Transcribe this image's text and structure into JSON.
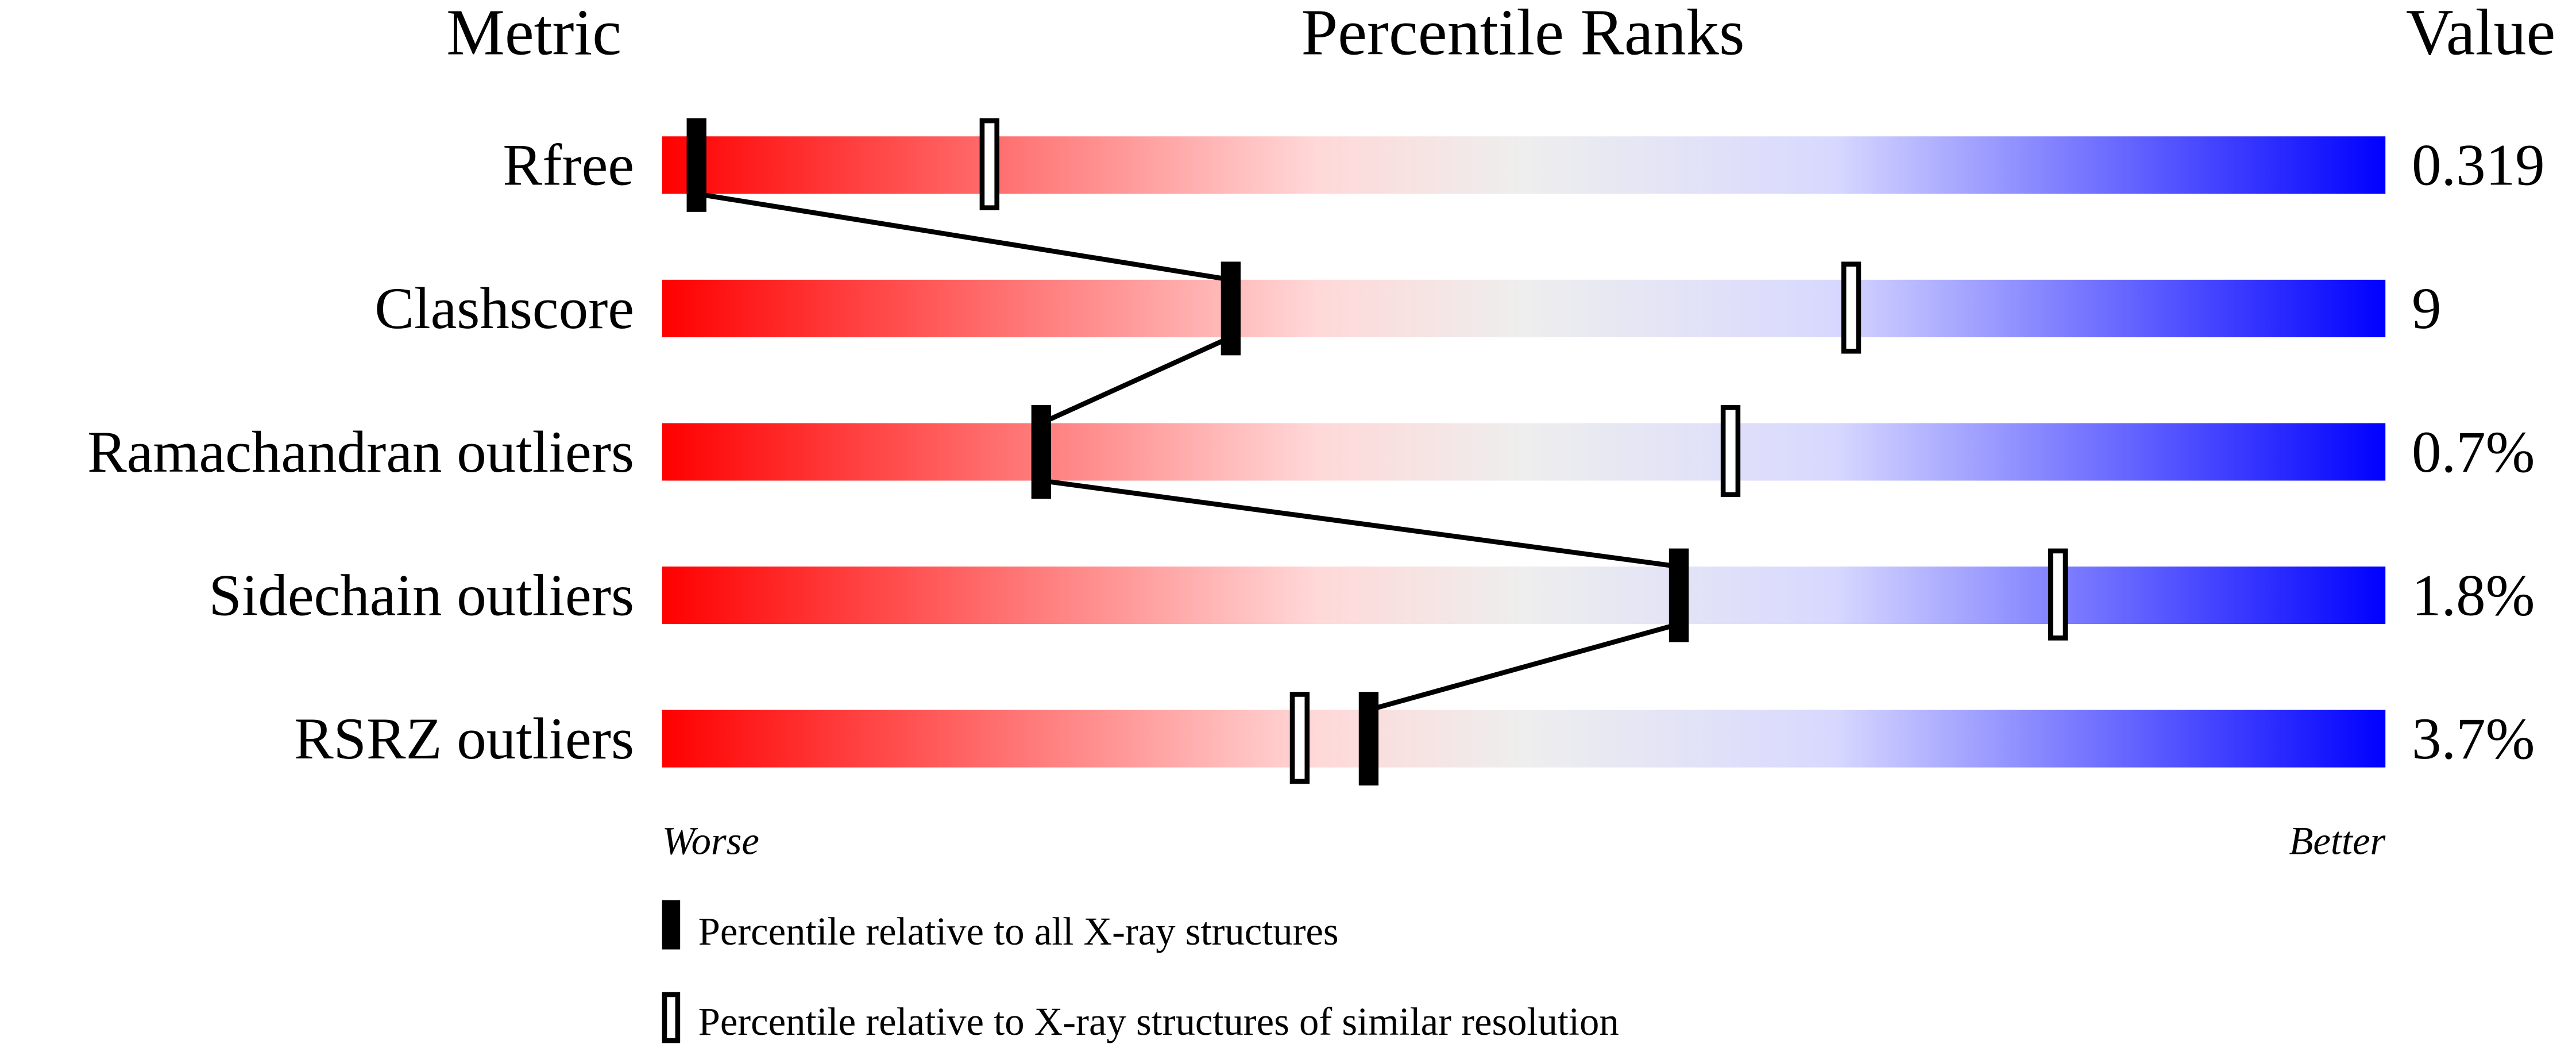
{
  "chart_data": {
    "type": "percentile-bar",
    "headers": {
      "metric": "Metric",
      "ranks": "Percentile Ranks",
      "value": "Value"
    },
    "xlim": [
      0,
      100
    ],
    "gradient_colors": [
      "#ff0000",
      "#ffd8d8",
      "#eeeeee",
      "#d8d8ff",
      "#0000ff"
    ],
    "rows": [
      {
        "metric": "Rfree",
        "value": "0.319",
        "percentile_all": 2,
        "percentile_similar": 19
      },
      {
        "metric": "Clashscore",
        "value": "9",
        "percentile_all": 33,
        "percentile_similar": 69
      },
      {
        "metric": "Ramachandran outliers",
        "value": "0.7%",
        "percentile_all": 22,
        "percentile_similar": 62
      },
      {
        "metric": "Sidechain outliers",
        "value": "1.8%",
        "percentile_all": 59,
        "percentile_similar": 81
      },
      {
        "metric": "RSRZ outliers",
        "value": "3.7%",
        "percentile_all": 41,
        "percentile_similar": 37
      }
    ],
    "axis_labels": {
      "left": "Worse",
      "right": "Better"
    },
    "legend": [
      {
        "marker": "filled",
        "label": "Percentile relative to all X-ray structures"
      },
      {
        "marker": "open",
        "label": "Percentile relative to X-ray structures of similar resolution"
      }
    ]
  }
}
